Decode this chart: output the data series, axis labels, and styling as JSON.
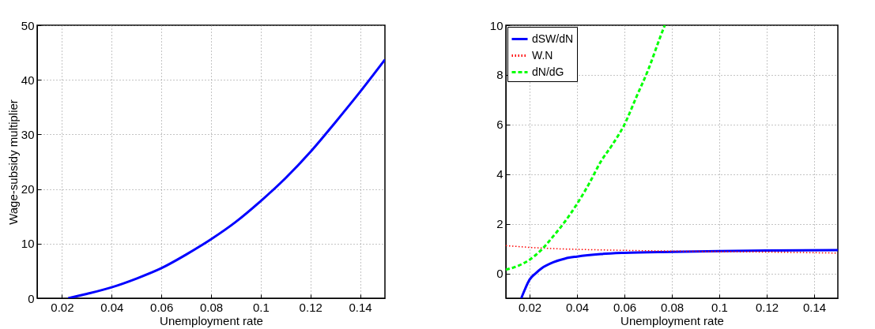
{
  "chart_data": [
    {
      "type": "line",
      "xlabel": "Unemployment rate",
      "ylabel": "Wage-subsidy multiplier",
      "xlim": [
        0.01,
        0.15
      ],
      "ylim": [
        0,
        50
      ],
      "xticks": [
        0.02,
        0.04,
        0.06,
        0.08,
        0.1,
        0.12,
        0.14
      ],
      "yticks": [
        0,
        10,
        20,
        30,
        40,
        50
      ],
      "grid": true,
      "legend": false,
      "x": [
        0.0225,
        0.03,
        0.04,
        0.05,
        0.06,
        0.07,
        0.08,
        0.09,
        0.1,
        0.11,
        0.12,
        0.13,
        0.14,
        0.15
      ],
      "series": [
        {
          "color": "#0000ff",
          "line_style": "solid",
          "values": [
            0,
            0.8,
            2,
            3.6,
            5.5,
            8,
            10.8,
            14,
            17.8,
            22,
            26.8,
            32.2,
            37.8,
            43.7
          ]
        }
      ]
    },
    {
      "type": "line",
      "xlabel": "Unemployment rate",
      "xlim": [
        0.01,
        0.15
      ],
      "ylim": [
        -1,
        10
      ],
      "xticks": [
        0.02,
        0.04,
        0.06,
        0.08,
        0.1,
        0.12,
        0.14
      ],
      "yticks": [
        0,
        2,
        4,
        6,
        8,
        10
      ],
      "grid": true,
      "legend": "top left",
      "series": [
        {
          "name": "dSW/dN",
          "color": "#0000ff",
          "line_style": "solid",
          "x": [
            0.0165,
            0.018,
            0.02,
            0.0225,
            0.025,
            0.03,
            0.035,
            0.04,
            0.05,
            0.06,
            0.08,
            0.1,
            0.12,
            0.15
          ],
          "values": [
            -1,
            -0.65,
            -0.25,
            0.0,
            0.2,
            0.45,
            0.6,
            0.68,
            0.78,
            0.83,
            0.87,
            0.9,
            0.92,
            0.94
          ]
        },
        {
          "name": "W.N",
          "color": "#ff0000",
          "line_style": "dotted",
          "x": [
            0.01,
            0.02,
            0.03,
            0.04,
            0.06,
            0.08,
            0.1,
            0.12,
            0.15
          ],
          "values": [
            1.12,
            1.05,
            1.0,
            0.97,
            0.93,
            0.9,
            0.88,
            0.86,
            0.82
          ]
        },
        {
          "name": "dN/dG",
          "color": "#00ff00",
          "line_style": "dashed",
          "x": [
            0.01,
            0.015,
            0.02,
            0.025,
            0.03,
            0.035,
            0.04,
            0.045,
            0.05,
            0.055,
            0.06,
            0.065,
            0.07,
            0.075,
            0.077
          ],
          "values": [
            0.15,
            0.3,
            0.55,
            0.95,
            1.5,
            2.1,
            2.8,
            3.6,
            4.5,
            5.2,
            6.0,
            7.1,
            8.2,
            9.5,
            10
          ]
        }
      ]
    }
  ]
}
